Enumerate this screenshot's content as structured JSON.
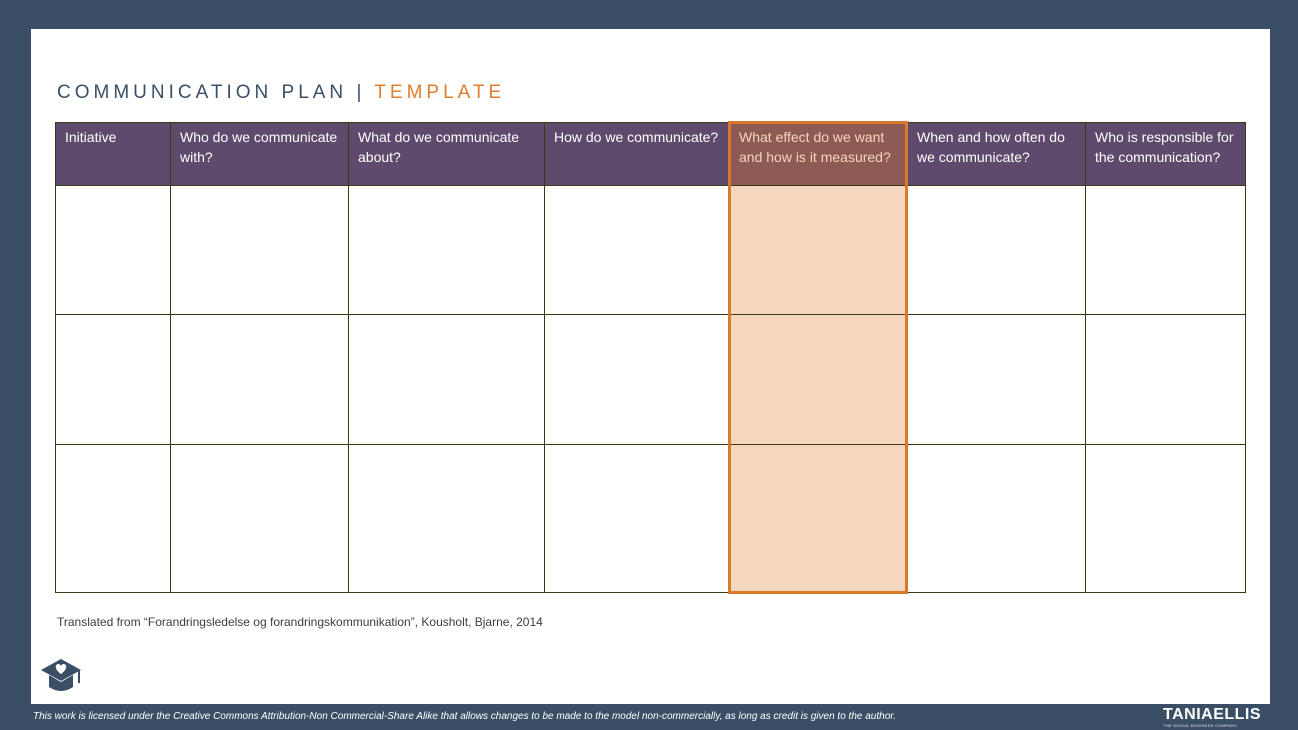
{
  "title": {
    "main": "COMMUNICATION PLAN",
    "separator": "|",
    "accent": "TEMPLATE"
  },
  "table": {
    "headers": [
      "Initiative",
      "Who do we communicate with?",
      "What do we communicate about?",
      "How do we communicate?",
      "What effect do we want and how is it measured?",
      "When and how often do we communicate?",
      "Who is responsible for the communication?"
    ],
    "rows": [
      [
        "",
        "",
        "",
        "",
        "",
        "",
        ""
      ],
      [
        "",
        "",
        "",
        "",
        "",
        "",
        ""
      ],
      [
        "",
        "",
        "",
        "",
        "",
        "",
        ""
      ]
    ],
    "highlight_column": 4
  },
  "source": "Translated from “Forandringsledelse og forandringskommunikation”, Kousholt, Bjarne, 2014",
  "footer": {
    "license": "This work is licensed under the Creative Commons Attribution-Non Commercial-Share Alike that allows changes to be made to the model non-commercially, as long as credit is given to the author.",
    "brand": "TANIAELLIS",
    "brand_tagline": "THE SOCIAL BUSINESS COMPANY"
  },
  "icons": {
    "logo": "graduation-cap-heart-icon"
  },
  "colors": {
    "background": "#3a4f66",
    "header": "#5e4a6c",
    "accent": "#e07d2c",
    "highlight_fill": "#f4d7be"
  }
}
